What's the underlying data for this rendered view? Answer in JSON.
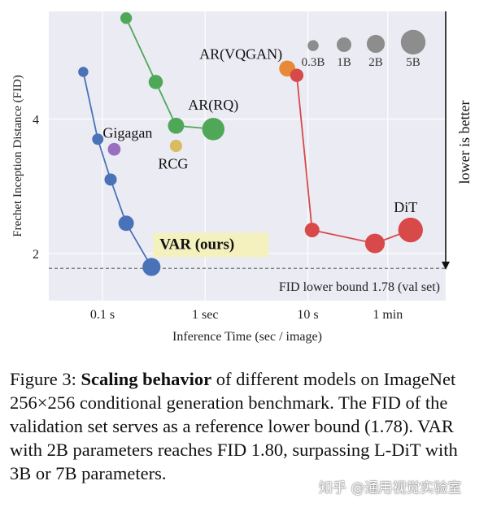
{
  "chart_data": {
    "type": "scatter",
    "title": "",
    "xlabel": "Inference Time (sec / image)",
    "ylabel": "Frechet Inception Distance (FID)",
    "x_scale": "log",
    "x_ticks": [
      {
        "value": 0.1,
        "label": "0.1 s"
      },
      {
        "value": 1,
        "label": "1 sec"
      },
      {
        "value": 10,
        "label": "10 s"
      },
      {
        "value": 60,
        "label": "1 min"
      }
    ],
    "y_ticks": [
      2,
      4
    ],
    "xlim": [
      0.03,
      220
    ],
    "ylim": [
      1.3,
      5.6
    ],
    "grid": true,
    "annotations": {
      "lower_better": "lower is better",
      "fid_bound": "FID lower bound 1.78 (val set)"
    },
    "fid_bound_value": 1.78,
    "size_legend": [
      {
        "label": "0.3B",
        "params_b": 0.3
      },
      {
        "label": "1B",
        "params_b": 1
      },
      {
        "label": "2B",
        "params_b": 2
      },
      {
        "label": "5B",
        "params_b": 5
      }
    ],
    "series": [
      {
        "name": "VAR (ours)",
        "color": "#4a72b8",
        "line": true,
        "highlight": true,
        "points": [
          {
            "x": 0.065,
            "y": 4.7,
            "params_b": 0.2
          },
          {
            "x": 0.09,
            "y": 3.7,
            "params_b": 0.35
          },
          {
            "x": 0.12,
            "y": 3.1,
            "params_b": 0.5
          },
          {
            "x": 0.17,
            "y": 2.45,
            "params_b": 1.2
          },
          {
            "x": 0.3,
            "y": 1.8,
            "params_b": 2
          }
        ]
      },
      {
        "name": "AR(RQ)",
        "color": "#4fa758",
        "line": true,
        "points": [
          {
            "x": 0.17,
            "y": 5.5,
            "params_b": 0.4
          },
          {
            "x": 0.33,
            "y": 4.55,
            "params_b": 0.9
          },
          {
            "x": 0.52,
            "y": 3.9,
            "params_b": 1.4
          },
          {
            "x": 1.2,
            "y": 3.85,
            "params_b": 3.8
          }
        ]
      },
      {
        "name": "AR(VQGAN)",
        "color": "#e68a3a",
        "line": false,
        "points": [
          {
            "x": 6.3,
            "y": 4.75,
            "params_b": 1.4
          }
        ]
      },
      {
        "name": "DiT",
        "color": "#d8494a",
        "line": true,
        "points": [
          {
            "x": 7.8,
            "y": 4.65,
            "params_b": 0.7
          },
          {
            "x": 11,
            "y": 2.35,
            "params_b": 1
          },
          {
            "x": 45,
            "y": 2.15,
            "params_b": 2.6
          },
          {
            "x": 100,
            "y": 2.35,
            "params_b": 5
          }
        ]
      },
      {
        "name": "Gigagan",
        "color": "#9a6fc2",
        "line": false,
        "points": [
          {
            "x": 0.13,
            "y": 3.55,
            "params_b": 0.6
          }
        ]
      },
      {
        "name": "RCG",
        "color": "#d9bb62",
        "line": false,
        "points": [
          {
            "x": 0.52,
            "y": 3.6,
            "params_b": 0.5
          }
        ]
      }
    ]
  },
  "caption": {
    "prefix": "Figure 3: ",
    "bold": "Scaling behavior",
    "rest": " of different models on ImageNet 256×256 conditional generation benchmark. The FID of the validation set serves as a reference lower bound (1.78). VAR with 2B parameters reaches FID 1.80, surpassing L-DiT with 3B or 7B parameters."
  },
  "watermark": "知乎 @通用视觉实验室"
}
